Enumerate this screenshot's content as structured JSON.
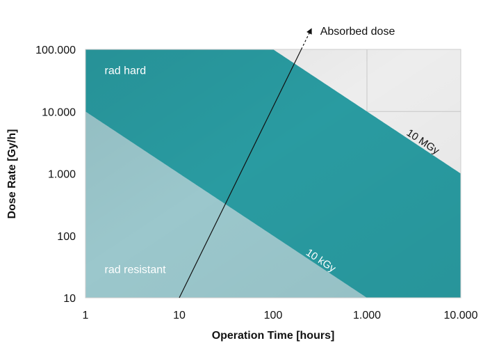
{
  "chart_data": {
    "type": "area",
    "title": "",
    "xlabel": "Operation Time [hours]",
    "ylabel": "Dose Rate [Gy/h]",
    "x_scale": "log",
    "y_scale": "log",
    "xlim": [
      1,
      10000
    ],
    "ylim": [
      10,
      100000
    ],
    "x_ticks": [
      1,
      10,
      100,
      1000,
      10000
    ],
    "y_ticks": [
      10,
      100,
      1000,
      10000,
      100000
    ],
    "x_tick_labels": [
      "1",
      "10",
      "100",
      "1.000",
      "10.000"
    ],
    "y_tick_labels": [
      "10",
      "100",
      "1.000",
      "10.000",
      "100.000"
    ],
    "grid": true,
    "regions": [
      {
        "name": "rad resistant",
        "upper_limit_dose_Gy": 10000,
        "color": "#9ecbd0"
      },
      {
        "name": "rad hard",
        "upper_limit_dose_Gy": 10000000,
        "color": "#2a9ea4"
      }
    ],
    "lines": [
      {
        "label": "10 kGy",
        "total_dose_Gy": 10000,
        "points": [
          [
            1,
            10000
          ],
          [
            1000,
            10
          ]
        ]
      },
      {
        "label": "10 MGy",
        "total_dose_Gy": 10000000,
        "points": [
          [
            100,
            100000
          ],
          [
            10000,
            1000
          ]
        ]
      }
    ],
    "arrow": {
      "label": "Absorbed dose",
      "points": [
        [
          10,
          10
        ],
        [
          250,
          200000
        ]
      ]
    },
    "colors": {
      "rad_hard": "#2a9ea4",
      "rad_resistant": "#9ecbd0",
      "unfilled": "#f2f2f2",
      "grid": "#cccccc"
    }
  }
}
